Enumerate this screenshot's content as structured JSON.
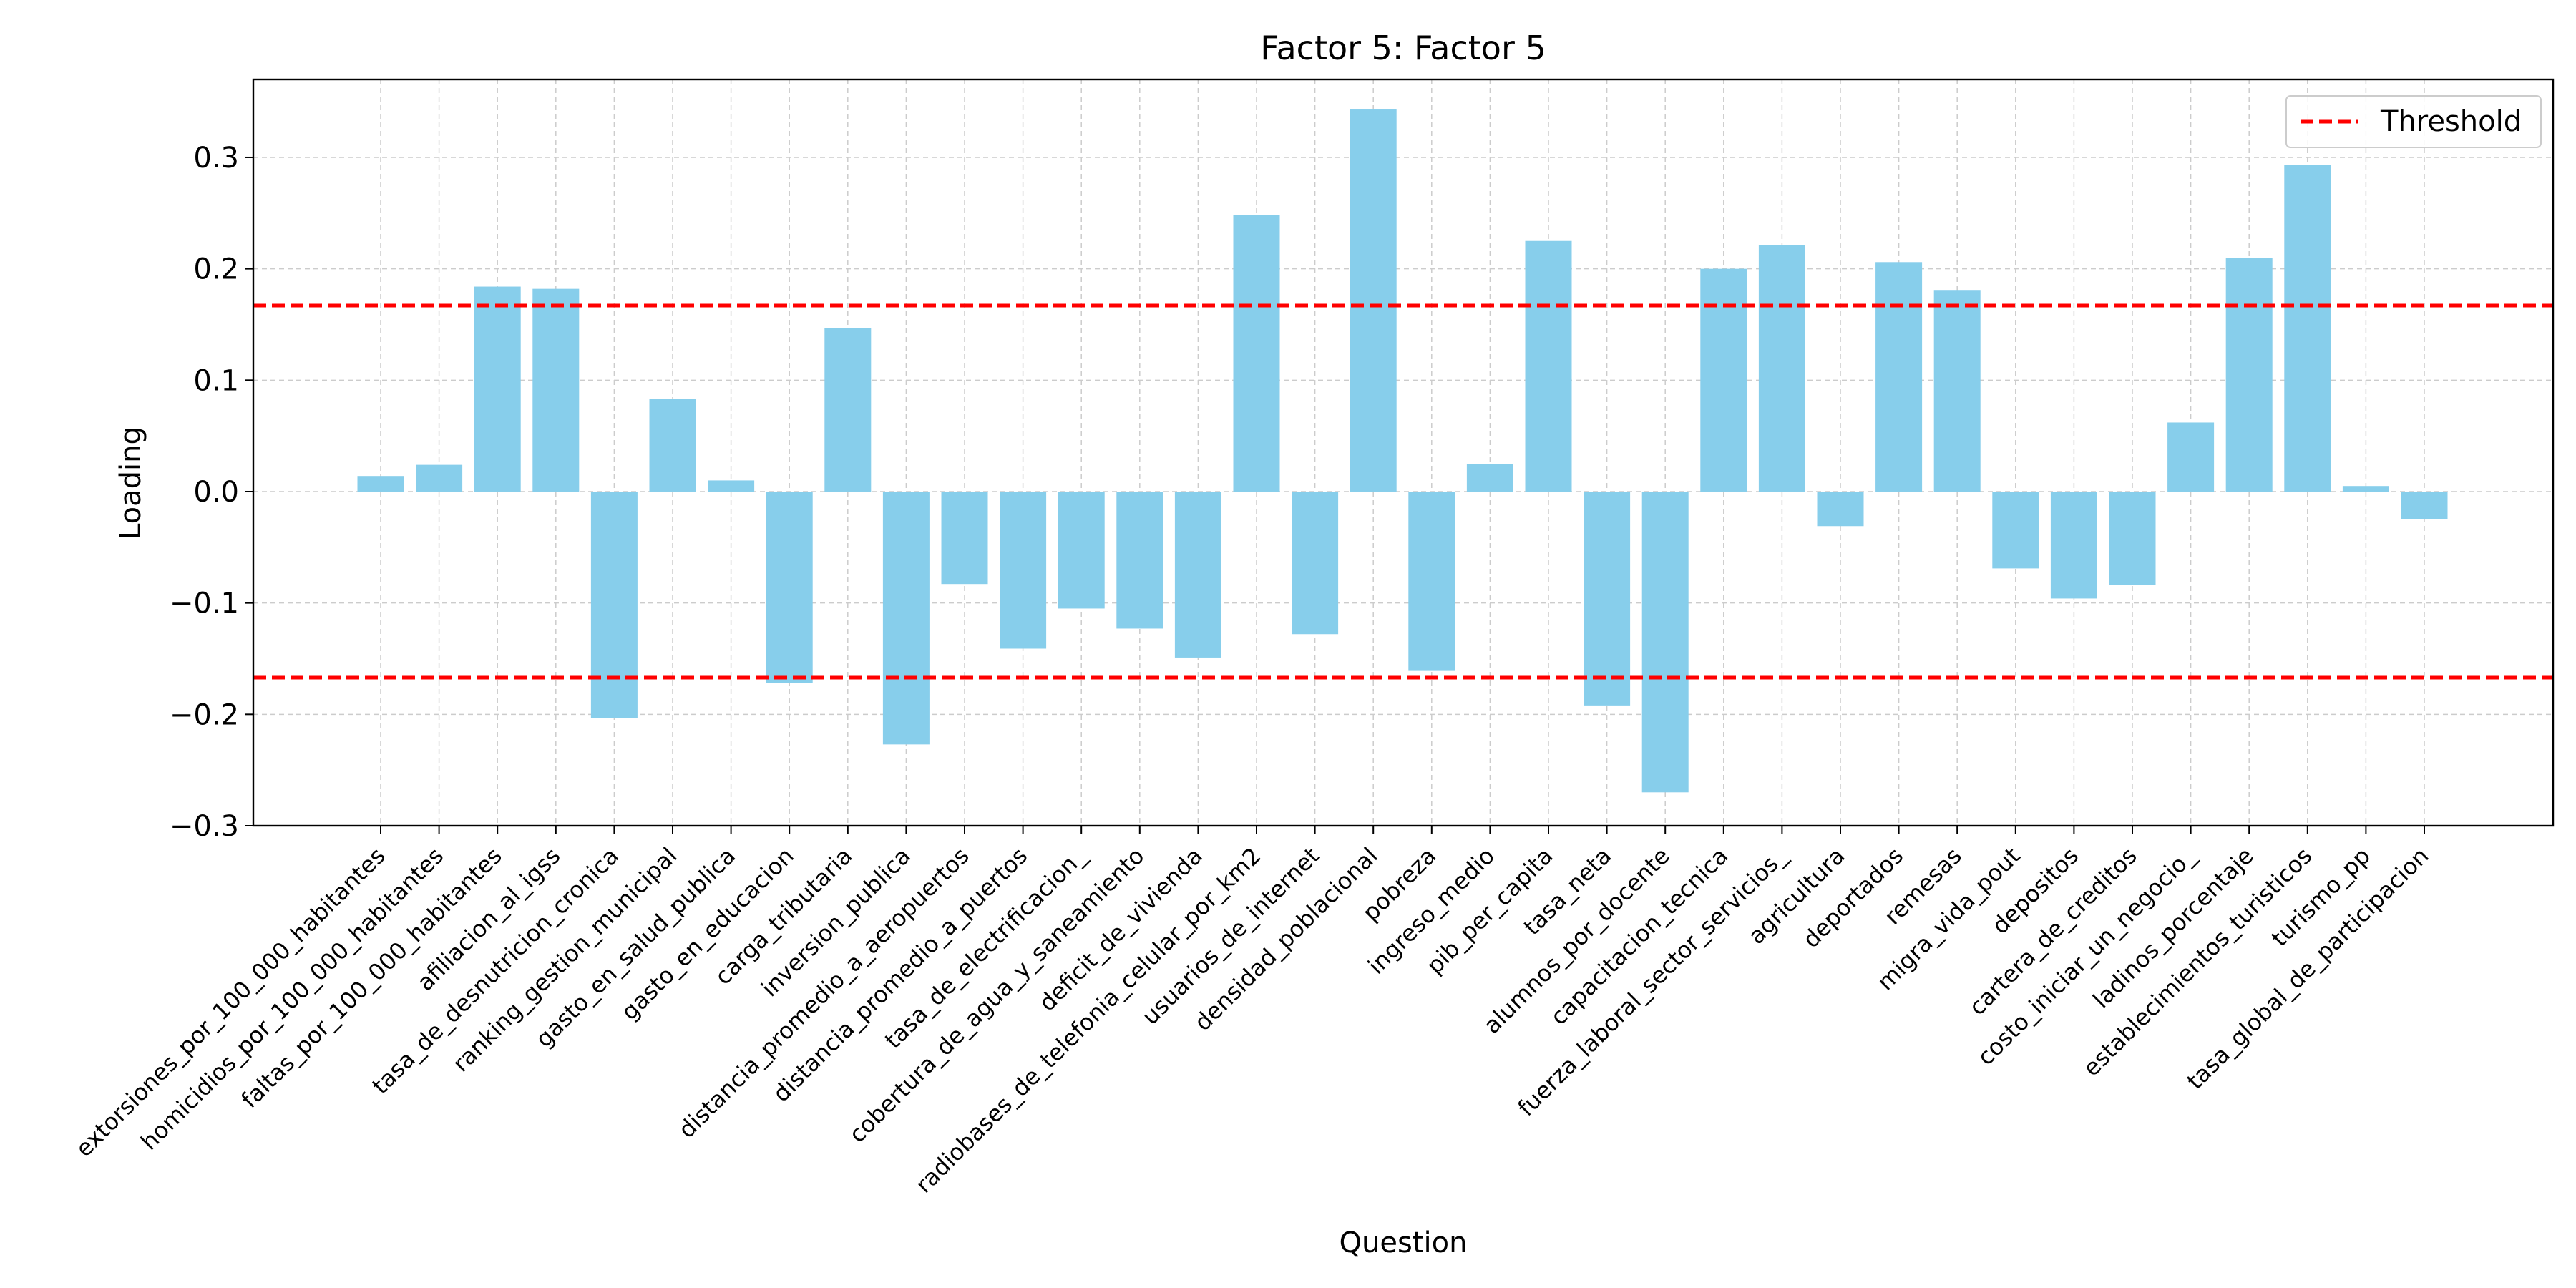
{
  "chart_data": {
    "type": "bar",
    "title": "Factor 5: Factor 5",
    "xlabel": "Question",
    "ylabel": "Loading",
    "ylim": [
      -0.3,
      0.37
    ],
    "yticks": [
      -0.3,
      -0.2,
      -0.1,
      0.0,
      0.1,
      0.2,
      0.3
    ],
    "ytick_labels": [
      "−0.3",
      "−0.2",
      "−0.1",
      "0.0",
      "0.1",
      "0.2",
      "0.3"
    ],
    "grid": true,
    "legend": {
      "position": "top-right",
      "entries": [
        "Threshold"
      ]
    },
    "bar_color": "#87ceeb",
    "threshold_color": "#ff0000",
    "thresholds": [
      0.167,
      -0.167
    ],
    "categories": [
      "extorsiones_por_100_000_habitantes",
      "homicidios_por_100_000_habitantes",
      "faltas_por_100_000_habitantes",
      "afiliacion_al_igss",
      "tasa_de_desnutricion_cronica",
      "ranking_gestion_municipal",
      "gasto_en_salud_publica",
      "gasto_en_educacion",
      "carga_tributaria",
      "inversion_publica",
      "distancia_promedio_a_aeropuertos",
      "distancia_promedio_a_puertos",
      "tasa_de_electrificacion_",
      "cobertura_de_agua_y_saneamiento",
      "deficit_de_vivienda",
      "radiobases_de_telefonia_celular_por_km2",
      "usuarios_de_internet",
      "densidad_poblacional",
      "pobreza",
      "ingreso_medio",
      "pib_per_capita",
      "tasa_neta",
      "alumnos_por_docente",
      "capacitacion_tecnica",
      "fuerza_laboral_sector_servicios_",
      "agricultura",
      "deportados",
      "remesas",
      "migra_vida_pout",
      "depositos",
      "cartera_de_creditos",
      "costo_iniciar_un_negocio_",
      "ladinos_porcentaje",
      "establecimientos_turisticos",
      "turismo_pp",
      "tasa_global_de_participacion"
    ],
    "values": [
      0.014,
      0.024,
      0.184,
      0.182,
      -0.203,
      0.083,
      0.01,
      -0.172,
      0.147,
      -0.227,
      -0.083,
      -0.141,
      -0.105,
      -0.123,
      -0.149,
      0.248,
      -0.128,
      0.343,
      -0.161,
      0.025,
      0.225,
      -0.192,
      -0.27,
      0.2,
      0.221,
      -0.031,
      0.206,
      0.181,
      -0.069,
      -0.096,
      -0.084,
      0.062,
      0.21,
      0.293,
      0.005,
      -0.025
    ]
  }
}
